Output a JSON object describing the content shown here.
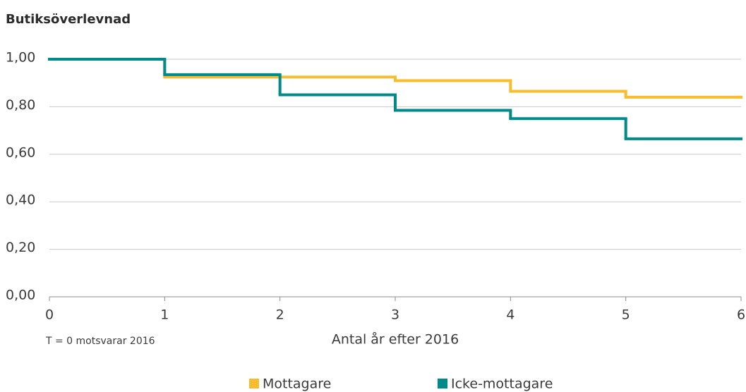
{
  "chart_data": {
    "type": "step",
    "title": "Butiksöverlevnad",
    "x_label": "Antal år efter 2016",
    "note": "T = 0 motsvarar 2016",
    "x": [
      0,
      1,
      2,
      3,
      4,
      5
    ],
    "series": [
      {
        "name": "Mottagare",
        "color": "#f7bd2e",
        "values": [
          1.0,
          0.925,
          0.925,
          0.91,
          0.865,
          0.84
        ]
      },
      {
        "name": "Icke-mottagare",
        "color": "#008a8a",
        "values": [
          1.0,
          0.935,
          0.85,
          0.785,
          0.75,
          0.665
        ]
      }
    ],
    "xlim": [
      0,
      6
    ],
    "xticks": [
      0,
      1,
      2,
      3,
      4,
      5,
      6
    ],
    "ylim": [
      0,
      1
    ],
    "yticks": [
      {
        "value": 0,
        "label": "0,00"
      },
      {
        "value": 0.2,
        "label": "0,20"
      },
      {
        "value": 0.4,
        "label": "0,40"
      },
      {
        "value": 0.6,
        "label": "0,60"
      },
      {
        "value": 0.8,
        "label": "0,80"
      },
      {
        "value": 1,
        "label": "1,00"
      }
    ],
    "grid": true,
    "legend": "bottom"
  }
}
